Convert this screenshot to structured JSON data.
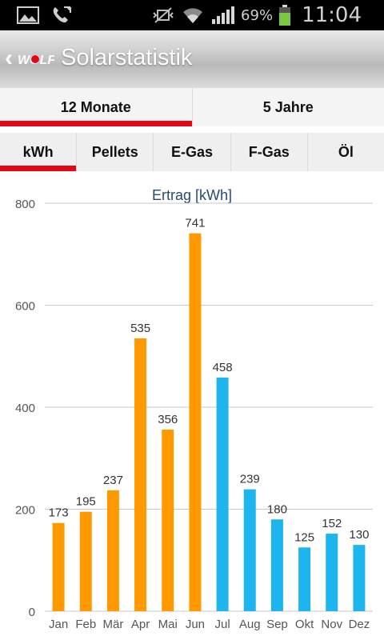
{
  "status_bar": {
    "battery": "69%",
    "time": "11:04",
    "icons": [
      "image-icon",
      "phone-icon",
      "mute-icon",
      "wifi-icon",
      "signal-icon",
      "battery-icon"
    ],
    "battery_color": "#7ac943"
  },
  "app_bar": {
    "title": "Solarstatistik",
    "back_icon": "chevron-left-icon",
    "logo": "wolf-logo",
    "logo_text": "WOLF"
  },
  "period_tabs": [
    {
      "label": "12 Monate",
      "active": true
    },
    {
      "label": "5 Jahre",
      "active": false
    }
  ],
  "unit_tabs": [
    {
      "label": "kWh",
      "active": true
    },
    {
      "label": "Pellets",
      "active": false
    },
    {
      "label": "E-Gas",
      "active": false
    },
    {
      "label": "F-Gas",
      "active": false
    },
    {
      "label": "Öl",
      "active": false
    }
  ],
  "colors": {
    "accent": "#e30613",
    "orange": "#ff9900",
    "blue": "#1eb4ee",
    "title": "#2a4a6b"
  },
  "chart_data": {
    "type": "bar",
    "title": "Ertrag [kWh]",
    "categories": [
      "Jan",
      "Feb",
      "Mär",
      "Apr",
      "Mai",
      "Jun",
      "Jul",
      "Aug",
      "Sep",
      "Okt",
      "Nov",
      "Dez"
    ],
    "values": [
      173,
      195,
      237,
      535,
      356,
      741,
      458,
      239,
      180,
      125,
      152,
      130
    ],
    "bar_colors": [
      "orange",
      "orange",
      "orange",
      "orange",
      "orange",
      "orange",
      "blue",
      "blue",
      "blue",
      "blue",
      "blue",
      "blue"
    ],
    "ylim": [
      0,
      800
    ],
    "yticks": [
      0,
      200,
      400,
      600,
      800
    ],
    "grid": true,
    "xlabel": "",
    "ylabel": ""
  }
}
